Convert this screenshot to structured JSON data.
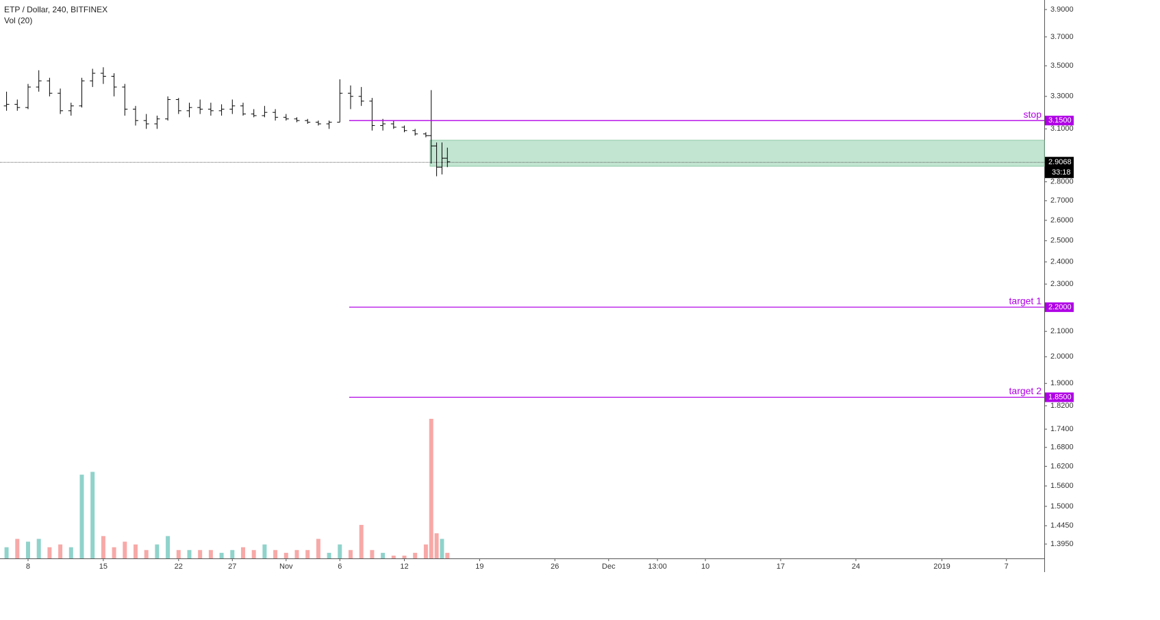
{
  "chart_data": {
    "type": "ohlc",
    "title": "ETP / Dollar, 240, BITFINEX",
    "indicator": "Vol (20)",
    "x": [
      6,
      7,
      8,
      9,
      10,
      11,
      12,
      13,
      14,
      15,
      16,
      17,
      18,
      19,
      20,
      21,
      22,
      23,
      24,
      25,
      26,
      27,
      28,
      29,
      30,
      31,
      32,
      33,
      34,
      35,
      36,
      37,
      38,
      39,
      40,
      41,
      42,
      43,
      44,
      45,
      45.5,
      46,
      46.5,
      47
    ],
    "open": [
      3.24,
      3.25,
      3.23,
      3.36,
      3.4,
      3.32,
      3.21,
      3.24,
      3.4,
      3.45,
      3.43,
      3.36,
      3.22,
      3.15,
      3.13,
      3.16,
      3.28,
      3.21,
      3.23,
      3.22,
      3.21,
      3.22,
      3.24,
      3.19,
      3.18,
      3.2,
      3.17,
      3.16,
      3.15,
      3.14,
      3.13,
      3.14,
      3.32,
      3.3,
      3.27,
      3.12,
      3.13,
      3.11,
      3.09,
      3.07,
      3.06,
      3.0,
      2.88,
      2.93
    ],
    "high": [
      3.33,
      3.28,
      3.38,
      3.47,
      3.42,
      3.35,
      3.26,
      3.42,
      3.48,
      3.49,
      3.45,
      3.38,
      3.24,
      3.19,
      3.18,
      3.3,
      3.29,
      3.26,
      3.28,
      3.26,
      3.25,
      3.28,
      3.26,
      3.22,
      3.24,
      3.22,
      3.19,
      3.17,
      3.16,
      3.15,
      3.15,
      3.41,
      3.37,
      3.36,
      3.29,
      3.16,
      3.15,
      3.12,
      3.1,
      3.08,
      3.34,
      3.02,
      3.02,
      2.99
    ],
    "low": [
      3.21,
      3.21,
      3.22,
      3.33,
      3.3,
      3.19,
      3.18,
      3.23,
      3.36,
      3.38,
      3.3,
      3.18,
      3.12,
      3.1,
      3.1,
      3.15,
      3.19,
      3.17,
      3.19,
      3.18,
      3.18,
      3.19,
      3.18,
      3.17,
      3.17,
      3.15,
      3.15,
      3.14,
      3.13,
      3.12,
      3.1,
      3.14,
      3.22,
      3.24,
      3.09,
      3.09,
      3.1,
      3.08,
      3.06,
      3.05,
      2.9,
      2.83,
      2.84,
      2.88
    ],
    "close": [
      3.25,
      3.23,
      3.36,
      3.4,
      3.32,
      3.21,
      3.24,
      3.4,
      3.45,
      3.43,
      3.36,
      3.22,
      3.15,
      3.13,
      3.16,
      3.28,
      3.21,
      3.23,
      3.22,
      3.21,
      3.22,
      3.24,
      3.19,
      3.18,
      3.2,
      3.17,
      3.16,
      3.15,
      3.14,
      3.13,
      3.14,
      3.32,
      3.3,
      3.27,
      3.12,
      3.13,
      3.11,
      3.09,
      3.07,
      3.06,
      3.0,
      2.88,
      2.93,
      2.91
    ],
    "volume": [
      20,
      35,
      30,
      35,
      20,
      25,
      20,
      150,
      155,
      40,
      20,
      30,
      25,
      15,
      25,
      40,
      15,
      15,
      15,
      15,
      10,
      15,
      20,
      15,
      25,
      15,
      10,
      15,
      15,
      35,
      10,
      25,
      15,
      60,
      15,
      10,
      5,
      5,
      10,
      25,
      250,
      45,
      35,
      10
    ],
    "volume_lim": [
      0,
      1000
    ],
    "bar_color": "#000000",
    "up_color": "#8fd3cb",
    "down_color": "#f7a9a7",
    "yscale": "log",
    "ylim": [
      1.357,
      3.972
    ],
    "yticks": [
      {
        "value": 3.9,
        "label": "3.9000"
      },
      {
        "value": 3.7,
        "label": "3.7000"
      },
      {
        "value": 3.5,
        "label": "3.5000"
      },
      {
        "value": 3.3,
        "label": "3.3000"
      },
      {
        "value": 3.1,
        "label": "3.1000"
      },
      {
        "value": 2.8,
        "label": "2.8000"
      },
      {
        "value": 2.7,
        "label": "2.7000"
      },
      {
        "value": 2.6,
        "label": "2.6000"
      },
      {
        "value": 2.5,
        "label": "2.5000"
      },
      {
        "value": 2.4,
        "label": "2.4000"
      },
      {
        "value": 2.3,
        "label": "2.3000"
      },
      {
        "value": 2.1,
        "label": "2.1000"
      },
      {
        "value": 2.0,
        "label": "2.0000"
      },
      {
        "value": 1.9,
        "label": "1.9000"
      },
      {
        "value": 1.82,
        "label": "1.8200"
      },
      {
        "value": 1.74,
        "label": "1.7400"
      },
      {
        "value": 1.68,
        "label": "1.6800"
      },
      {
        "value": 1.62,
        "label": "1.6200"
      },
      {
        "value": 1.56,
        "label": "1.5600"
      },
      {
        "value": 1.5,
        "label": "1.5000"
      },
      {
        "value": 1.445,
        "label": "1.4450"
      },
      {
        "value": 1.395,
        "label": "1.3950"
      }
    ],
    "xlim": [
      5.39,
      102.52
    ],
    "xticks": [
      8,
      15,
      22,
      27,
      {
        "value": 32,
        "label": "Nov"
      },
      {
        "value": 37,
        "label": "6"
      },
      {
        "value": 43,
        "label": "12"
      },
      {
        "value": 50,
        "label": "19"
      },
      {
        "value": 57,
        "label": "26"
      },
      {
        "value": 62,
        "label": "Dec"
      },
      {
        "value": 66.54,
        "label": "13:00"
      },
      {
        "value": 71,
        "label": "10"
      },
      {
        "value": 78,
        "label": "17"
      },
      {
        "value": 85,
        "label": "24"
      },
      {
        "value": 93,
        "label": "2019"
      },
      {
        "value": 99,
        "label": "7"
      }
    ],
    "grid": false,
    "levels": [
      {
        "name": "stop",
        "value": 3.15,
        "label": "3.1500",
        "start": 37.87,
        "color": "#b000e6"
      },
      {
        "name": "target 1",
        "value": 2.2,
        "label": "2.2000",
        "start": 37.87,
        "color": "#b000e6"
      },
      {
        "name": "target 2",
        "value": 1.85,
        "label": "1.8500",
        "start": 37.87,
        "color": "#b000e6"
      }
    ],
    "zone": {
      "x0": 45.39,
      "top": 3.033,
      "bottom": 2.885,
      "color": "#c2e5d1",
      "border": "#8cc9a5"
    },
    "last_price": {
      "value": 2.9068,
      "label": "2.9068",
      "countdown": "33:18"
    }
  }
}
